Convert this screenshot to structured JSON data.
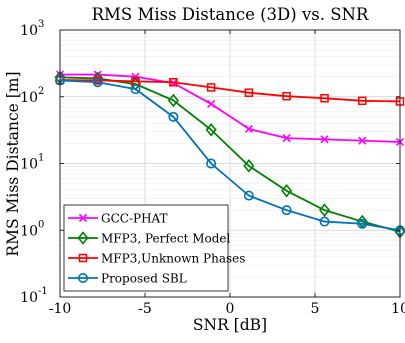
{
  "chart_data": {
    "type": "line",
    "title": "RMS Miss Distance (3D) vs. SNR",
    "xlabel": "SNR [dB]",
    "ylabel": "RMS Miss Distance [m]",
    "xlim": [
      -10,
      10
    ],
    "ylim": [
      0.1,
      1000
    ],
    "yscale": "log",
    "grid": true,
    "legend_position": "bottom-left",
    "x_ticks": [
      -10,
      -5,
      0,
      5,
      10
    ],
    "x_tick_labels": [
      "-10",
      "-5",
      "0",
      "5",
      "10"
    ],
    "y_ticks": [
      0.1,
      1,
      10,
      100,
      1000
    ],
    "y_tick_bases": [
      "10",
      "10",
      "10",
      "10",
      "10"
    ],
    "y_tick_exps": [
      "-1",
      "0",
      "1",
      "2",
      "3"
    ],
    "x": [
      -10,
      -7.78,
      -5.56,
      -3.33,
      -1.11,
      1.11,
      3.33,
      5.56,
      7.78,
      10
    ],
    "series": [
      {
        "name": "GCC-PHAT",
        "color": "#ff00ff",
        "marker": "x",
        "values": [
          215,
          215,
          200,
          160,
          78,
          33,
          24,
          23,
          22,
          21
        ]
      },
      {
        "name": "MFP3, Perfect Model",
        "color": "#008000",
        "marker": "diamond",
        "values": [
          195,
          188,
          155,
          88,
          32,
          9.2,
          3.9,
          2.0,
          1.35,
          0.95
        ]
      },
      {
        "name": "MFP3,Unknown Phases",
        "color": "#ff0000",
        "marker": "square",
        "values": [
          178,
          176,
          170,
          165,
          138,
          115,
          102,
          95,
          87,
          85
        ]
      },
      {
        "name": "Proposed SBL",
        "color": "#0072bd",
        "marker": "circle",
        "values": [
          175,
          165,
          130,
          50,
          10,
          3.3,
          2.0,
          1.35,
          1.25,
          1.0
        ]
      }
    ]
  }
}
